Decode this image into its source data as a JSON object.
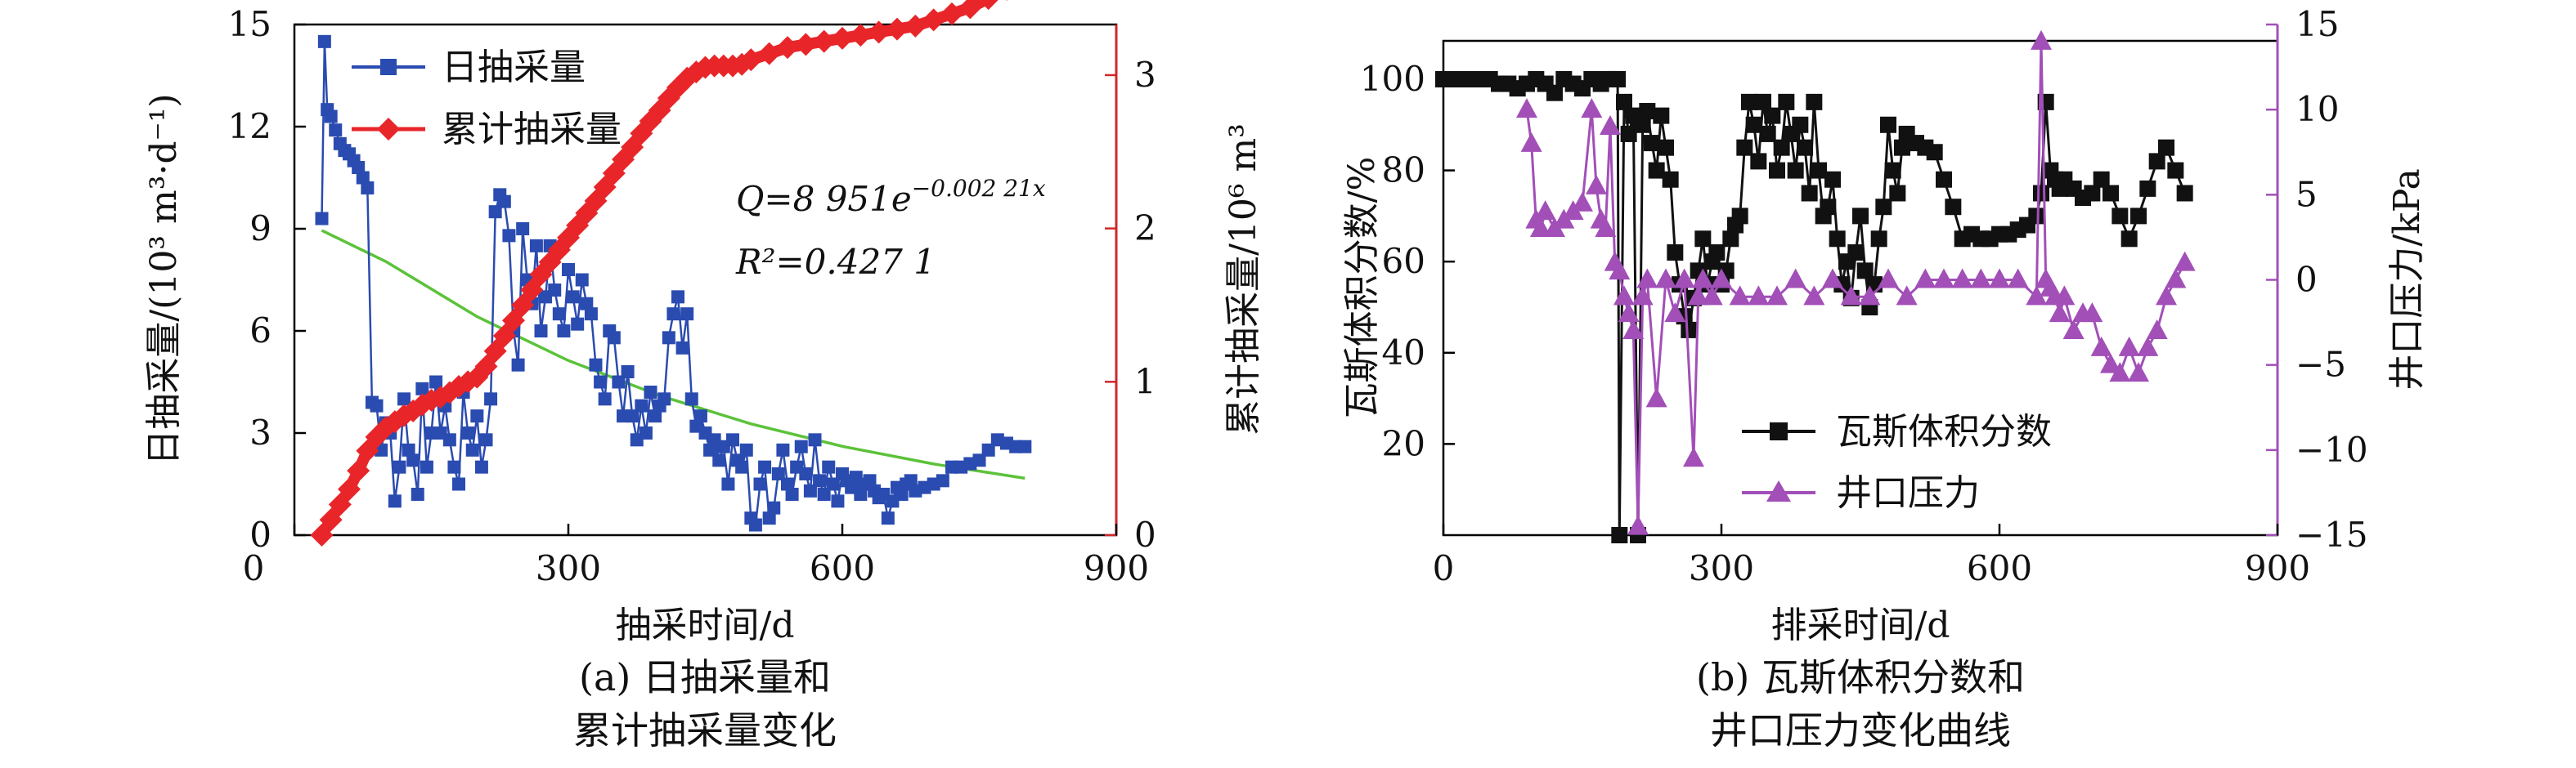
{
  "colors": {
    "daily": "#2a4bb0",
    "cumulative": "#e8262a",
    "fit": "#5cc23a",
    "gas": "#111111",
    "pressure": "#a24fb8",
    "right_axis_a": "#d0272b",
    "right_axis_b": "#a24fb8"
  },
  "chart_data": [
    {
      "type": "line",
      "caption_line1": "(a) 日抽采量和",
      "caption_line2": "累计抽采量变化",
      "xlabel": "抽采时间/d",
      "ylabel_left": "日抽采量/(10³ m³·d⁻¹)",
      "ylabel_right": "累计抽采量/10⁶ m³",
      "xlim": [
        0,
        900
      ],
      "xticks": [
        "0",
        "300",
        "600",
        "900"
      ],
      "ylim_left": [
        0,
        15
      ],
      "yticks_left": [
        "0",
        "3",
        "6",
        "9",
        "12",
        "15"
      ],
      "ylim_right": [
        0,
        3.33
      ],
      "yticks_right": [
        "0",
        "1",
        "2",
        "3"
      ],
      "legend": [
        "日抽采量",
        "累计抽采量"
      ],
      "legend_position": "top-left",
      "annotation_eq": "Q=8 951e",
      "annotation_exp": "−0.002 21x",
      "annotation_r2": "R²=0.427 1",
      "series": [
        {
          "name": "日抽采量",
          "axis": "left",
          "marker": "square",
          "x": [
            30,
            33,
            36,
            40,
            45,
            50,
            55,
            60,
            65,
            70,
            75,
            80,
            85,
            90,
            95,
            100,
            105,
            110,
            115,
            120,
            125,
            130,
            135,
            140,
            145,
            150,
            155,
            160,
            165,
            170,
            175,
            180,
            185,
            190,
            195,
            200,
            205,
            210,
            215,
            220,
            225,
            230,
            235,
            240,
            245,
            250,
            255,
            260,
            265,
            270,
            275,
            280,
            285,
            290,
            295,
            300,
            305,
            310,
            315,
            320,
            325,
            330,
            335,
            340,
            345,
            350,
            355,
            360,
            365,
            370,
            375,
            380,
            385,
            390,
            395,
            400,
            405,
            410,
            415,
            420,
            425,
            430,
            435,
            440,
            445,
            450,
            455,
            460,
            465,
            470,
            475,
            480,
            485,
            490,
            495,
            500,
            505,
            510,
            515,
            520,
            525,
            530,
            535,
            540,
            545,
            550,
            555,
            560,
            565,
            570,
            575,
            580,
            585,
            590,
            595,
            600,
            605,
            610,
            615,
            620,
            625,
            630,
            635,
            640,
            645,
            650,
            655,
            660,
            665,
            670,
            675,
            680,
            690,
            700,
            710,
            720,
            730,
            740,
            750,
            760,
            770,
            780,
            790,
            800
          ],
          "values": [
            9.3,
            14.5,
            12.5,
            12.3,
            11.9,
            11.5,
            11.3,
            11.2,
            11.0,
            10.8,
            10.5,
            10.2,
            3.9,
            3.8,
            2.5,
            3.3,
            3.0,
            1.0,
            2.0,
            4.0,
            2.5,
            2.2,
            1.2,
            4.3,
            2.0,
            3.0,
            4.5,
            3.0,
            3.8,
            2.8,
            2.0,
            1.5,
            4.2,
            3.0,
            2.5,
            3.5,
            2.0,
            2.8,
            4.0,
            9.5,
            10.0,
            9.8,
            8.8,
            6.0,
            5.0,
            9.0,
            7.5,
            6.8,
            8.5,
            6.0,
            7.0,
            8.5,
            7.2,
            6.5,
            6.0,
            7.8,
            7.0,
            6.2,
            7.5,
            6.8,
            6.5,
            5.0,
            4.5,
            4.0,
            6.0,
            5.8,
            4.5,
            3.5,
            4.8,
            3.5,
            2.8,
            3.8,
            3.0,
            4.2,
            3.5,
            3.8,
            4.0,
            5.8,
            6.5,
            7.0,
            5.5,
            6.5,
            4.0,
            3.2,
            3.5,
            3.0,
            2.5,
            2.8,
            2.2,
            2.6,
            1.5,
            2.8,
            2.2,
            2.0,
            2.5,
            0.5,
            0.3,
            1.5,
            2.0,
            0.5,
            0.8,
            1.8,
            2.5,
            1.5,
            1.2,
            2.0,
            2.6,
            1.8,
            1.3,
            2.8,
            1.6,
            1.2,
            2.0,
            1.5,
            1.0,
            1.8,
            1.6,
            1.4,
            1.7,
            1.2,
            1.5,
            1.6,
            1.3,
            1.1,
            1.2,
            0.5,
            1.0,
            1.4,
            1.2,
            1.5,
            1.6,
            1.3,
            1.4,
            1.5,
            1.6,
            2.0,
            2.0,
            2.1,
            2.2,
            2.5,
            2.8,
            2.7,
            2.6,
            2.6
          ]
        },
        {
          "name": "累计抽采量",
          "axis": "right",
          "marker": "diamond",
          "x": [
            30,
            40,
            50,
            60,
            70,
            80,
            90,
            100,
            110,
            120,
            130,
            140,
            150,
            160,
            170,
            180,
            190,
            200,
            210,
            220,
            230,
            240,
            250,
            260,
            270,
            280,
            290,
            300,
            310,
            320,
            330,
            340,
            350,
            360,
            370,
            380,
            390,
            400,
            410,
            420,
            430,
            440,
            450,
            460,
            470,
            480,
            490,
            500,
            520,
            540,
            560,
            580,
            600,
            620,
            640,
            660,
            680,
            700,
            720,
            740,
            760,
            780,
            800
          ],
          "values": [
            0.0,
            0.1,
            0.2,
            0.3,
            0.42,
            0.55,
            0.64,
            0.7,
            0.74,
            0.78,
            0.81,
            0.85,
            0.88,
            0.9,
            0.93,
            0.97,
            1.0,
            1.03,
            1.1,
            1.2,
            1.3,
            1.4,
            1.5,
            1.6,
            1.7,
            1.78,
            1.86,
            1.94,
            2.02,
            2.1,
            2.18,
            2.27,
            2.36,
            2.45,
            2.53,
            2.62,
            2.7,
            2.77,
            2.85,
            2.92,
            2.98,
            3.02,
            3.05,
            3.06,
            3.06,
            3.06,
            3.07,
            3.1,
            3.14,
            3.18,
            3.2,
            3.22,
            3.24,
            3.26,
            3.28,
            3.3,
            3.32,
            3.36,
            3.4,
            3.44,
            3.5,
            3.56,
            3.63
          ]
        },
        {
          "name": "",
          "axis": "left",
          "marker": "none",
          "fit": true,
          "x": [
            30,
            100,
            200,
            300,
            400,
            500,
            600,
            700,
            800
          ],
          "values": [
            8.95,
            8.04,
            6.42,
            5.13,
            4.1,
            3.27,
            2.61,
            2.09,
            1.67
          ]
        }
      ]
    },
    {
      "type": "line",
      "caption_line1": "(b) 瓦斯体积分数和",
      "caption_line2": "井口压力变化曲线",
      "xlabel": "排采时间/d",
      "ylabel_left": "瓦斯体积分数/%",
      "ylabel_right": "井口压力/kPa",
      "xlim": [
        0,
        900
      ],
      "xticks": [
        "0",
        "300",
        "600",
        "900"
      ],
      "ylim_left": [
        0,
        112
      ],
      "yticks_left": [
        "20",
        "40",
        "60",
        "80",
        "100"
      ],
      "ylim_right": [
        -15,
        15
      ],
      "yticks_right": [
        "−15",
        "−10",
        "−5",
        "0",
        "5",
        "10",
        "15"
      ],
      "legend": [
        "瓦斯体积分数",
        "井口压力"
      ],
      "legend_position": "bottom-center",
      "series": [
        {
          "name": "瓦斯体积分数",
          "axis": "left",
          "marker": "square",
          "x": [
            0,
            10,
            20,
            30,
            40,
            50,
            60,
            70,
            80,
            90,
            100,
            110,
            120,
            130,
            140,
            150,
            160,
            170,
            175,
            180,
            185,
            188,
            190,
            195,
            200,
            205,
            210,
            215,
            220,
            225,
            230,
            235,
            240,
            245,
            250,
            255,
            260,
            265,
            270,
            275,
            280,
            285,
            290,
            295,
            300,
            305,
            310,
            315,
            320,
            325,
            330,
            335,
            340,
            345,
            350,
            355,
            360,
            365,
            370,
            375,
            380,
            385,
            390,
            395,
            400,
            405,
            410,
            415,
            420,
            425,
            430,
            435,
            440,
            445,
            450,
            455,
            460,
            465,
            470,
            475,
            480,
            485,
            490,
            495,
            500,
            510,
            520,
            530,
            540,
            550,
            560,
            570,
            580,
            590,
            600,
            610,
            620,
            630,
            640,
            645,
            650,
            655,
            660,
            665,
            670,
            680,
            690,
            700,
            710,
            720,
            730,
            740,
            750,
            760,
            770,
            780,
            790,
            800
          ],
          "values": [
            100,
            100,
            100,
            100,
            100,
            100,
            99,
            99,
            98,
            99,
            100,
            99,
            97,
            100,
            99,
            98,
            100,
            99,
            100,
            100,
            100,
            100,
            0,
            95,
            88,
            92,
            0,
            90,
            93,
            86,
            80,
            92,
            85,
            78,
            62,
            55,
            48,
            45,
            52,
            58,
            65,
            55,
            60,
            62,
            55,
            58,
            65,
            68,
            70,
            85,
            95,
            90,
            82,
            95,
            88,
            92,
            80,
            85,
            95,
            88,
            80,
            90,
            85,
            75,
            95,
            80,
            70,
            72,
            78,
            65,
            55,
            60,
            52,
            62,
            70,
            58,
            50,
            55,
            65,
            72,
            90,
            80,
            75,
            85,
            88,
            86,
            85,
            84,
            78,
            72,
            65,
            66,
            65,
            65,
            66,
            66,
            67,
            68,
            70,
            75,
            95,
            80,
            78,
            76,
            78,
            76,
            74,
            75,
            78,
            75,
            70,
            65,
            70,
            76,
            82,
            85,
            80,
            75
          ]
        },
        {
          "name": "井口压力",
          "axis": "right",
          "marker": "triangle",
          "x": [
            90,
            95,
            100,
            105,
            110,
            120,
            130,
            140,
            150,
            160,
            165,
            170,
            175,
            180,
            185,
            190,
            195,
            200,
            205,
            210,
            215,
            220,
            230,
            240,
            250,
            260,
            270,
            275,
            280,
            290,
            300,
            320,
            340,
            360,
            380,
            400,
            420,
            440,
            460,
            480,
            500,
            520,
            540,
            560,
            580,
            600,
            620,
            640,
            645,
            650,
            655,
            660,
            665,
            670,
            680,
            690,
            700,
            710,
            720,
            730,
            740,
            750,
            760,
            770,
            780,
            790,
            800
          ],
          "values": [
            10,
            8,
            3.5,
            3,
            4,
            3,
            3.5,
            4,
            4.5,
            10,
            5.5,
            3.5,
            3,
            9,
            1,
            0.5,
            -1,
            -2,
            -3,
            -14.5,
            -1,
            0,
            -7,
            0,
            -2,
            0,
            -10.5,
            -1,
            0,
            -1,
            0,
            -1,
            -1,
            -1,
            0,
            -1,
            0,
            -1,
            -1,
            0,
            -1,
            0,
            0,
            0,
            0,
            0,
            0,
            -1,
            14,
            0,
            -0.5,
            -1,
            -2,
            -1,
            -3,
            -2,
            -2,
            -4,
            -5,
            -5.5,
            -4,
            -5.5,
            -4,
            -3,
            -1,
            0,
            1
          ]
        }
      ]
    }
  ]
}
